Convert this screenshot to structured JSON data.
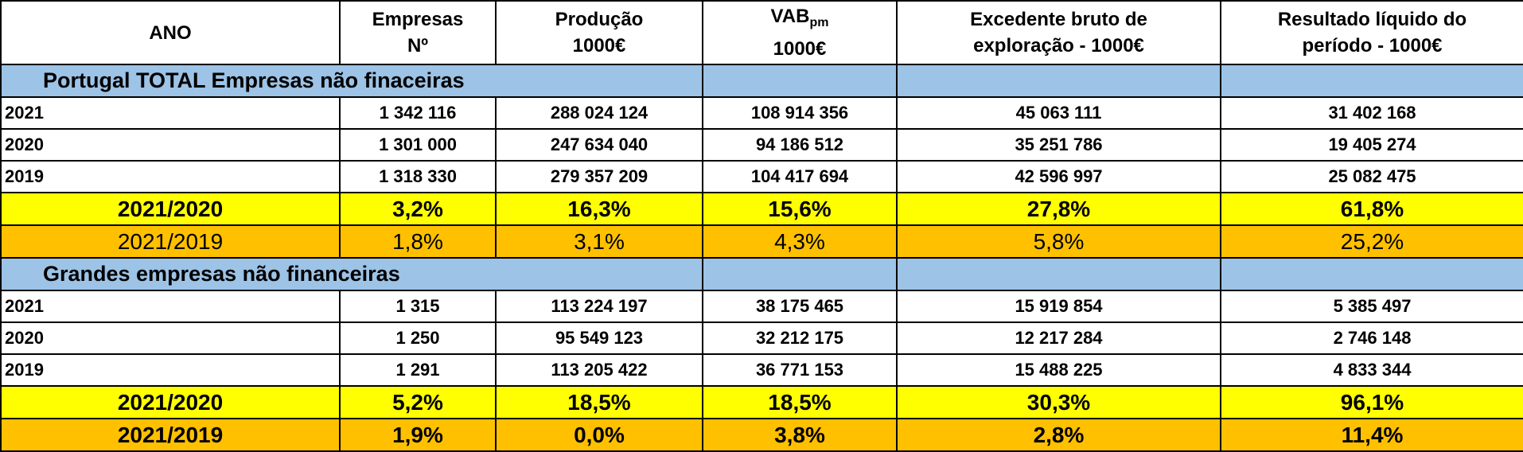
{
  "header": {
    "col0": "ANO",
    "col1_line1": "Empresas",
    "col1_line2": "Nº",
    "col2_line1": "Produção",
    "col2_line2": "1000€",
    "col3_main": "VAB",
    "col3_sub": "pm",
    "col3_line2": "1000€",
    "col4_line1": "Excedente bruto de",
    "col4_line2": "exploração - 1000€",
    "col5_line1": "Resultado líquido do",
    "col5_line2": "período - 1000€"
  },
  "sections": [
    {
      "title": "Portugal TOTAL Empresas não finaceiras",
      "rows": [
        {
          "year": "2021",
          "empresas": "1 342 116",
          "producao": "288 024 124",
          "vab": "108 914 356",
          "excedente": "45 063 111",
          "resultado": "31 402 168"
        },
        {
          "year": "2020",
          "empresas": "1 301 000",
          "producao": "247 634 040",
          "vab": "94 186 512",
          "excedente": "35 251 786",
          "resultado": "19 405 274"
        },
        {
          "year": "2019",
          "empresas": "1 318 330",
          "producao": "279 357 209",
          "vab": "104 417 694",
          "excedente": "42 596 997",
          "resultado": "25 082 475"
        }
      ],
      "ratios": [
        {
          "label": "2021/2020",
          "empresas": "3,2%",
          "producao": "16,3%",
          "vab": "15,6%",
          "excedente": "27,8%",
          "resultado": "61,8%",
          "color": "#ffff00"
        },
        {
          "label": "2021/2019",
          "empresas": "1,8%",
          "producao": "3,1%",
          "vab": "4,3%",
          "excedente": "5,8%",
          "resultado": "25,2%",
          "color": "#ffc000"
        }
      ]
    },
    {
      "title": "Grandes empresas não financeiras",
      "rows": [
        {
          "year": "2021",
          "empresas": "1 315",
          "producao": "113 224 197",
          "vab": "38 175 465",
          "excedente": "15 919 854",
          "resultado": "5 385 497"
        },
        {
          "year": "2020",
          "empresas": "1 250",
          "producao": "95 549 123",
          "vab": "32 212 175",
          "excedente": "12 217 284",
          "resultado": "2 746 148"
        },
        {
          "year": "2019",
          "empresas": "1 291",
          "producao": "113 205 422",
          "vab": "36 771 153",
          "excedente": "15 488 225",
          "resultado": "4 833 344"
        }
      ],
      "ratios": [
        {
          "label": "2021/2020",
          "empresas": "5,2%",
          "producao": "18,5%",
          "vab": "18,5%",
          "excedente": "30,3%",
          "resultado": "96,1%",
          "color": "#ffff00"
        },
        {
          "label": "2021/2019",
          "empresas": "1,9%",
          "producao": "0,0%",
          "vab": "3,8%",
          "excedente": "2,8%",
          "resultado": "11,4%",
          "color": "#ffc000"
        }
      ]
    }
  ]
}
